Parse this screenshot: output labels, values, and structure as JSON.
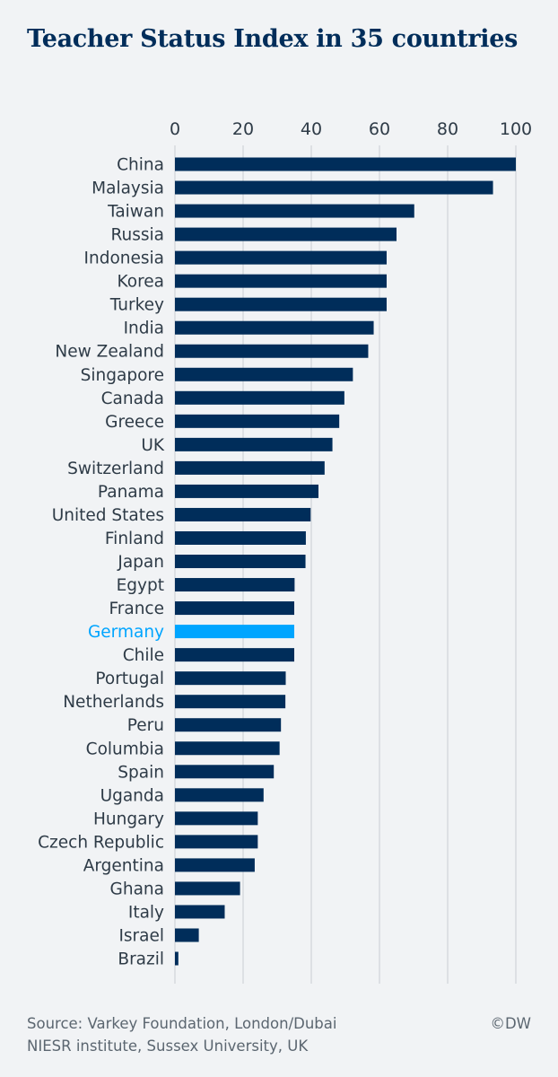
{
  "title": "Teacher Status Index in 35 countries",
  "colors": {
    "bar": "#002d5a",
    "highlight": "#00a5ff",
    "label": "#2e3b47",
    "background": "#f1f3f5"
  },
  "chart_data": {
    "type": "bar",
    "orientation": "horizontal",
    "title": "Teacher Status Index in 35 countries",
    "xlim": [
      0,
      100
    ],
    "xticks": [
      0,
      20,
      40,
      60,
      80,
      100
    ],
    "grid": true,
    "highlight": "Germany",
    "categories": [
      "China",
      "Malaysia",
      "Taiwan",
      "Russia",
      "Indonesia",
      "Korea",
      "Turkey",
      "India",
      "New Zealand",
      "Singapore",
      "Canada",
      "Greece",
      "UK",
      "Switzerland",
      "Panama",
      "United States",
      "Finland",
      "Japan",
      "Egypt",
      "France",
      "Germany",
      "Chile",
      "Portugal",
      "Netherlands",
      "Peru",
      "Columbia",
      "Spain",
      "Uganda",
      "Hungary",
      "Czech Republic",
      "Argentina",
      "Ghana",
      "Italy",
      "Israel",
      "Brazil"
    ],
    "values": [
      100,
      93.3,
      70.2,
      65.0,
      62.1,
      62.1,
      62.1,
      58.3,
      56.7,
      52.2,
      49.7,
      48.2,
      46.2,
      43.9,
      42.1,
      39.8,
      38.4,
      38.3,
      35.1,
      35.0,
      35.0,
      35.0,
      32.5,
      32.4,
      31.1,
      30.7,
      29.0,
      26.0,
      24.3,
      24.3,
      23.4,
      19.1,
      14.6,
      7.0,
      1.0
    ]
  },
  "footer": {
    "source_line1": "Source: Varkey Foundation, London/Dubai",
    "source_line2": "NIESR institute, Sussex University, UK",
    "credit": "©DW"
  }
}
